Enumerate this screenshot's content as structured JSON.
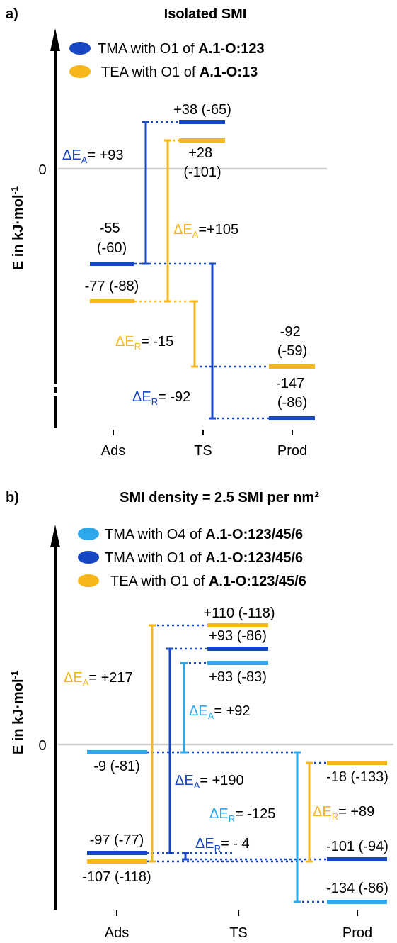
{
  "colors": {
    "tma_o1": "#1747c2",
    "tea_o1": "#f7b71b",
    "tma_o4": "#2ea8ec",
    "zero_line": "#cccccc",
    "axis": "#000000"
  },
  "panel_a": {
    "tag": "a)",
    "title": "Isolated SMI",
    "ylabel": "E in kJ·mol",
    "ylabel_sup": "-1",
    "zero_label": "0",
    "x_categories": [
      "Ads",
      "TS",
      "Prod"
    ],
    "legend": [
      {
        "text": "TMA with O1 of ",
        "bold": "A.1-O:123",
        "color_key": "tma_o1"
      },
      {
        "text": "TEA with O1 of ",
        "bold": "A.1-O:13",
        "color_key": "tea_o1"
      }
    ],
    "levels": {
      "tma_ads": {
        "line1": "-55",
        "line2": "(-60)"
      },
      "tea_ads": {
        "line1": "-77 (-88)"
      },
      "tma_ts": {
        "line1": "+38 (-65)"
      },
      "tea_ts": {
        "line1": "+28",
        "line2": "(-101)"
      },
      "tea_prod": {
        "line1": "-92",
        "line2": "(-59)"
      },
      "tma_prod": {
        "line1": "-147",
        "line2": "(-86)"
      }
    },
    "barriers": {
      "tma_ea": {
        "prefix": "ΔE",
        "sub": "A",
        "value": "= +93"
      },
      "tea_ea": {
        "prefix": "ΔE",
        "sub": "A",
        "value": "=+105"
      },
      "tea_er": {
        "prefix": "ΔE",
        "sub": "R",
        "value": "= -15"
      },
      "tma_er": {
        "prefix": "ΔE",
        "sub": "R",
        "value": "= -92"
      }
    }
  },
  "panel_b": {
    "tag": "b)",
    "title": "SMI density = 2.5 SMI per nm²",
    "ylabel": "E in kJ·mol",
    "ylabel_sup": "-1",
    "zero_label": "0",
    "x_categories": [
      "Ads",
      "TS",
      "Prod"
    ],
    "legend": [
      {
        "text": "TMA with O4 of ",
        "bold": "A.1-O:123/45/6",
        "color_key": "tma_o4"
      },
      {
        "text": "TMA with O1 of ",
        "bold": "A.1-O:123/45/6",
        "color_key": "tma_o1"
      },
      {
        "text": "TEA with O1 of ",
        "bold": "A.1-O:123/45/6",
        "color_key": "tea_o1"
      }
    ],
    "levels": {
      "tma4_ads": {
        "line1": "-9 (-81)"
      },
      "tma1_ads": {
        "line1": "-97 (-77)"
      },
      "tea_ads": {
        "line1": "-107 (-118)"
      },
      "tea_ts": {
        "line1": "+110 (-118)"
      },
      "tma1_ts": {
        "line1": "+93 (-86)"
      },
      "tma4_ts": {
        "line1": "+83 (-83)"
      },
      "tea_prod": {
        "line1": "-18 (-133)"
      },
      "tma1_prod": {
        "line1": "-101 (-94)"
      },
      "tma4_prod": {
        "line1": "-134 (-86)"
      }
    },
    "barriers": {
      "tea_ea": {
        "prefix": "ΔE",
        "sub": "A",
        "value": "= +217"
      },
      "tma4_ea": {
        "prefix": "ΔE",
        "sub": "A",
        "value": "= +92"
      },
      "tma1_ea": {
        "prefix": "ΔE",
        "sub": "A",
        "value": "= +190"
      },
      "tma4_er": {
        "prefix": "ΔE",
        "sub": "R",
        "value": "= -125"
      },
      "tea_er": {
        "prefix": "ΔE",
        "sub": "R",
        "value": "= +89"
      },
      "tma1_er": {
        "prefix": "ΔE",
        "sub": "R",
        "value": "= - 4"
      }
    }
  }
}
